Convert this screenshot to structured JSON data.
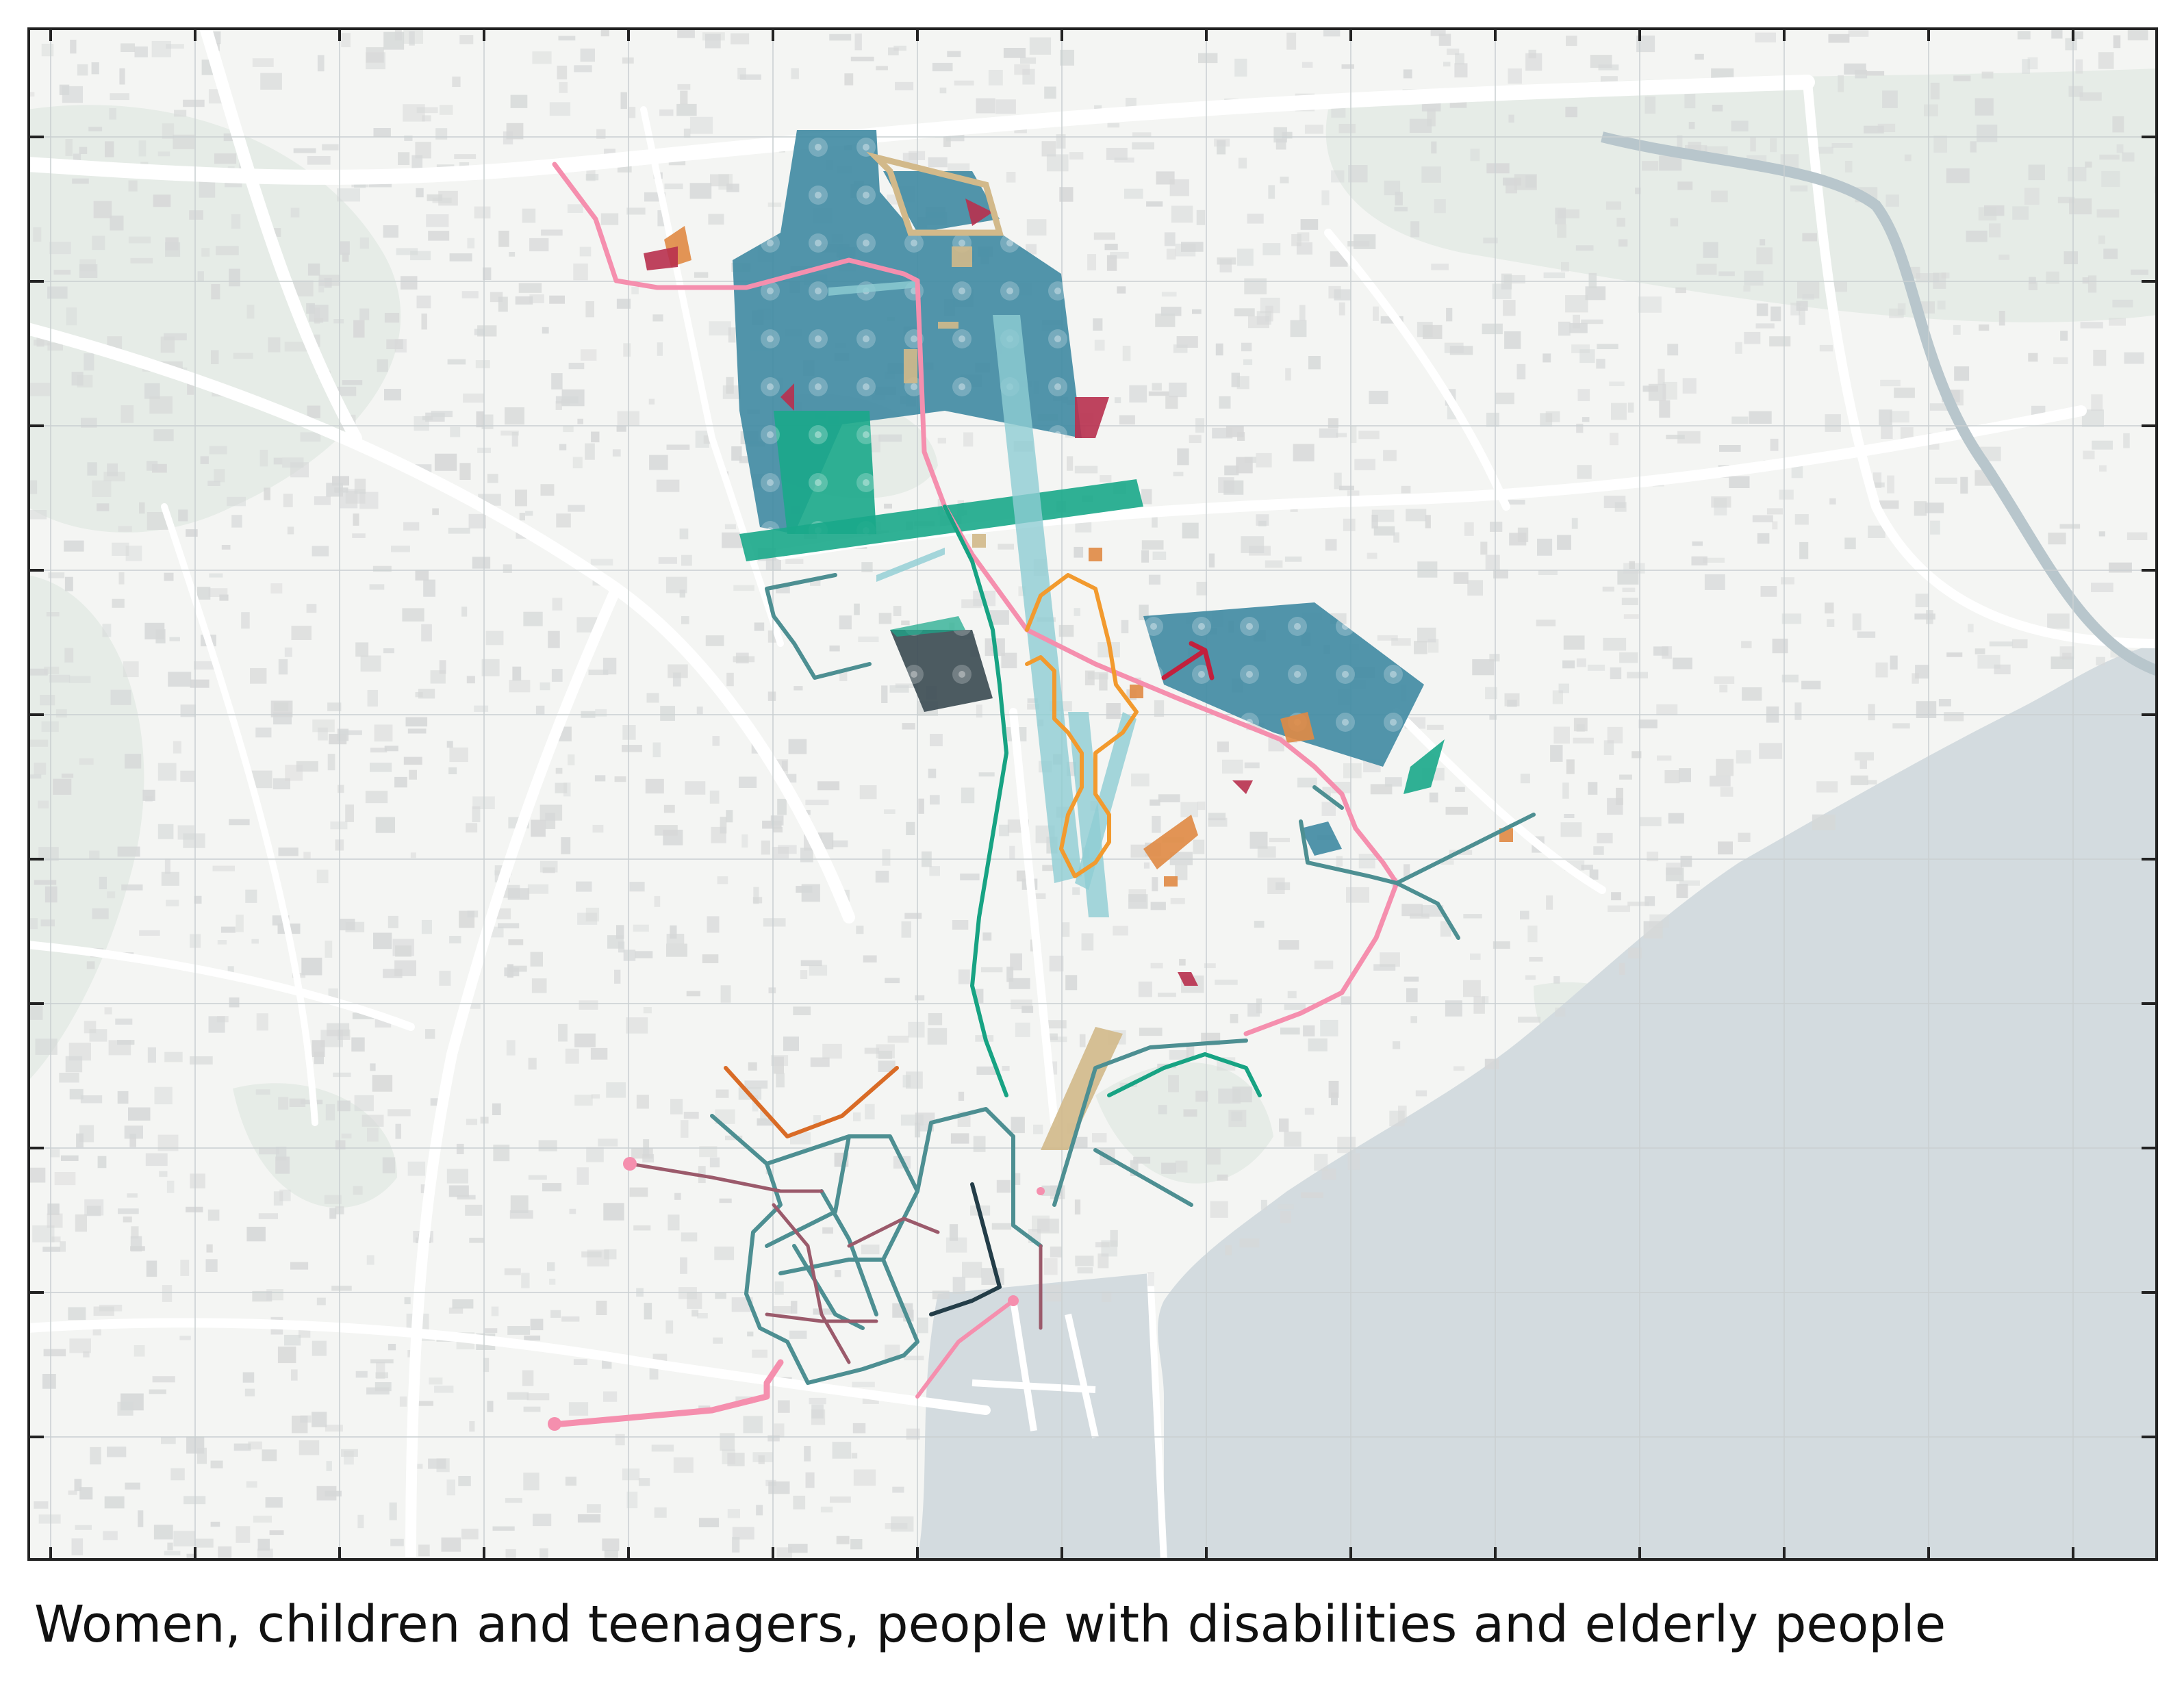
{
  "caption": "Women, children and teenagers, people with disabilities and elderly people",
  "map": {
    "colors": {
      "land": "#f4f5f3",
      "green": "#e6ece7",
      "sea": "#d3dbdf",
      "road": "#ffffff",
      "building": "#d6d8d8",
      "grid": "#c9cfd1",
      "frame": "#222222",
      "teal_blue_area": "#3f8aa2",
      "green_area": "#1aa98a",
      "light_cyan_area": "#8fcdd3",
      "dark_grey_area": "#3d4d55",
      "orange_area": "#e08a44",
      "crimson_area": "#b8304e",
      "tan_area": "#d2b98a",
      "pink_route": "#f58fae",
      "teal_route": "#4d8f92",
      "green_route": "#17a383",
      "orange_route": "#f29a2e",
      "dark_route": "#233d48",
      "mauve_route": "#9b5a6b",
      "red_route": "#c2203d",
      "rust_route": "#d96b26"
    }
  }
}
